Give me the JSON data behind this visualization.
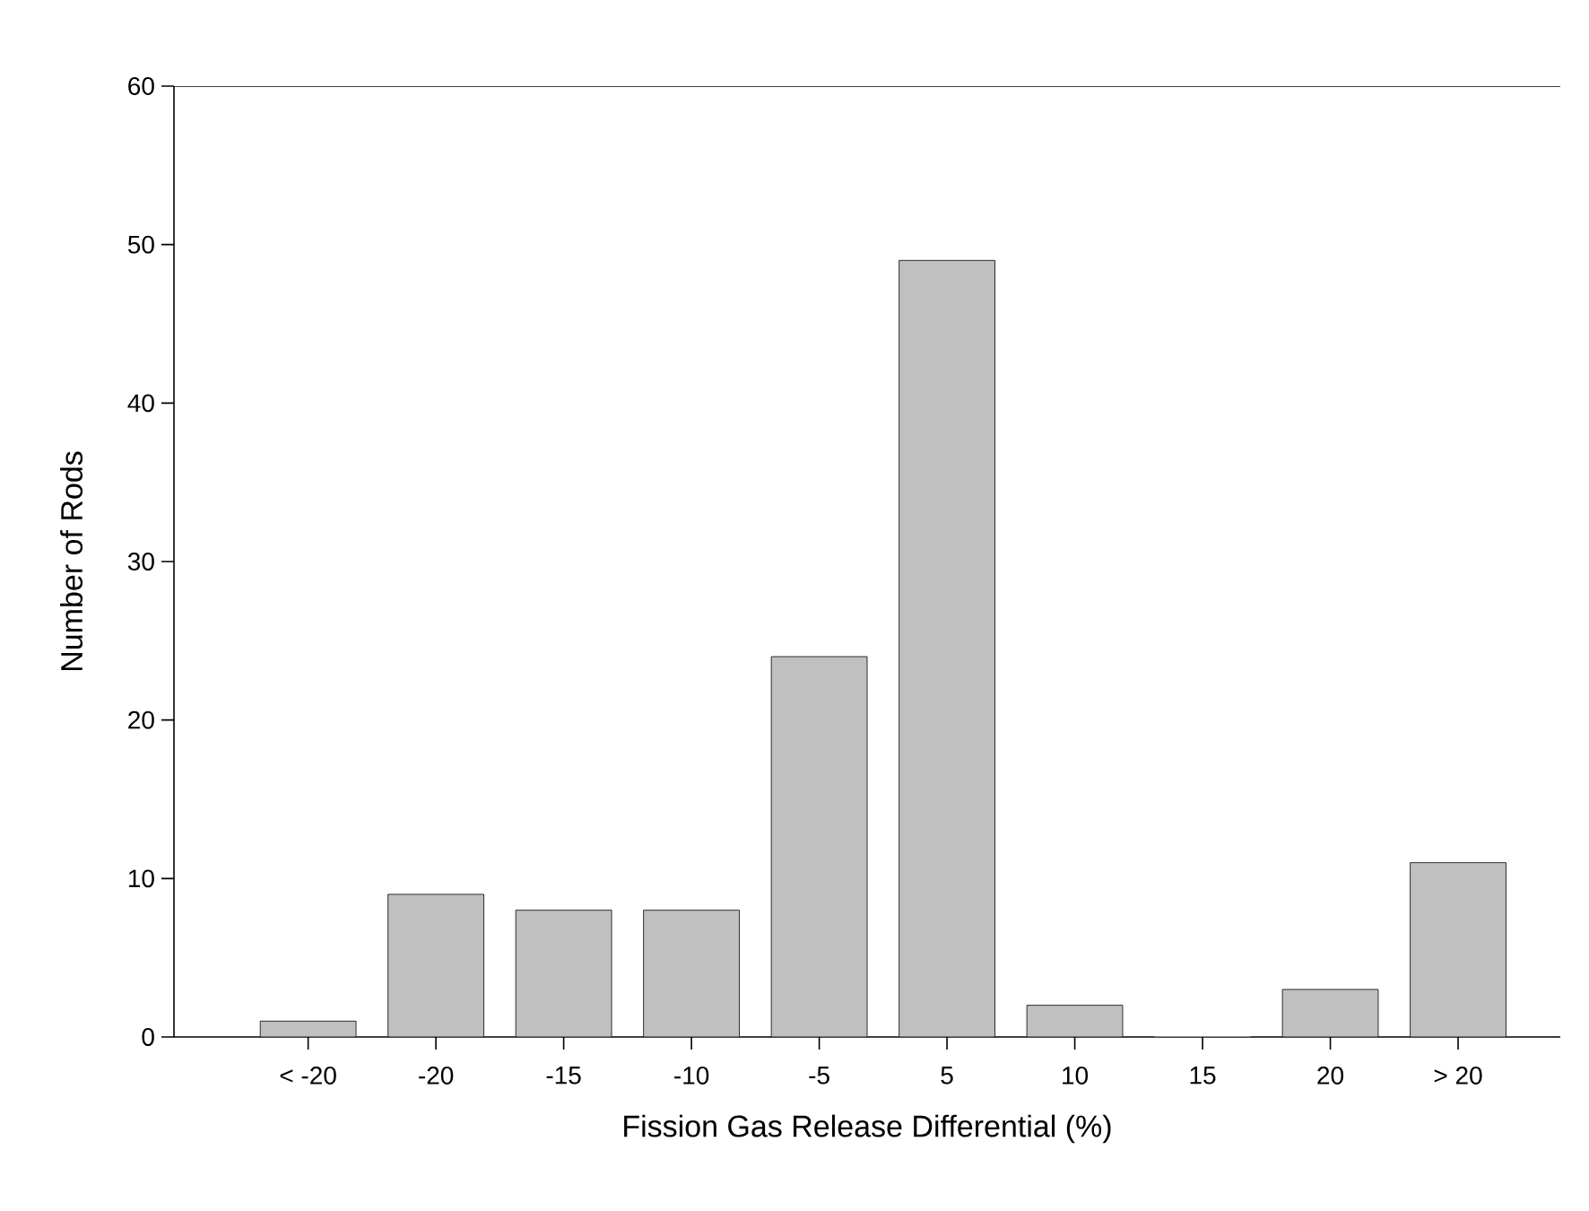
{
  "chart_data": {
    "type": "bar",
    "xlabel": "Fission Gas Release Differential (%)",
    "ylabel": "Number of Rods",
    "categories": [
      "< -20",
      "-20",
      "-15",
      "-10",
      "-5",
      "5",
      "10",
      "15",
      "20",
      "> 20"
    ],
    "values": [
      1,
      9,
      8,
      8,
      24,
      49,
      2,
      0,
      3,
      11
    ],
    "color": "#c0c0c0",
    "ylim": [
      0,
      60
    ],
    "yticks": [
      0,
      10,
      20,
      30,
      40,
      50,
      60
    ],
    "grid": false
  }
}
